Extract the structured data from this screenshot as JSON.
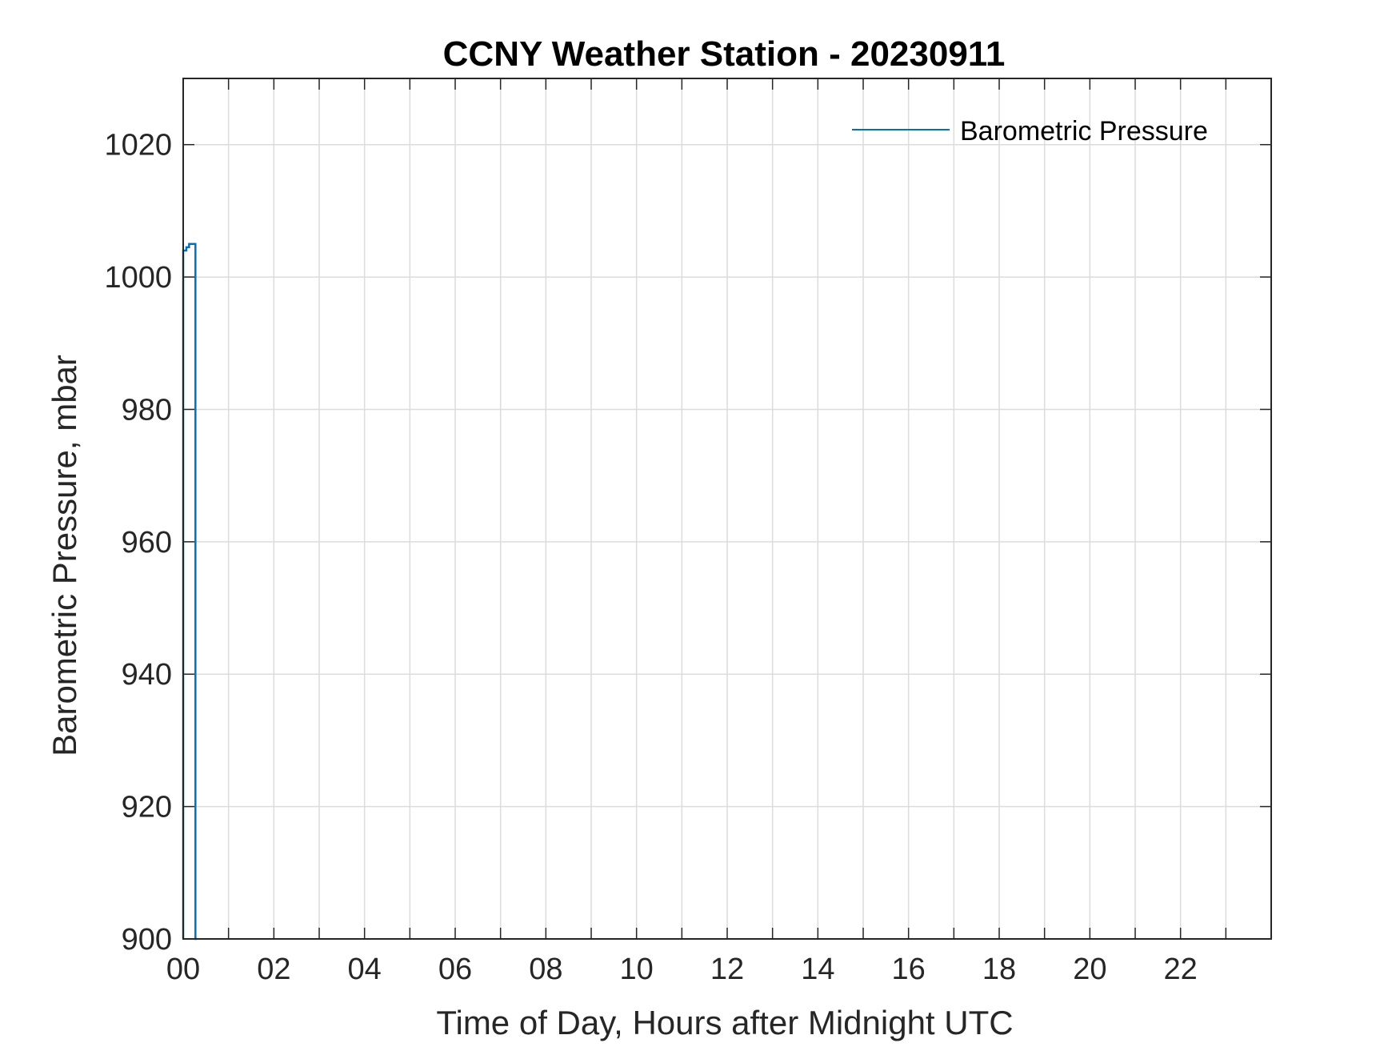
{
  "chart_data": {
    "type": "line",
    "title": "CCNY Weather Station - 20230911",
    "xlabel": "Time of Day, Hours after Midnight UTC",
    "ylabel": "Barometric Pressure, mbar",
    "xlim": [
      0,
      24
    ],
    "ylim": [
      900,
      1030
    ],
    "x_ticks": [
      0,
      2,
      4,
      6,
      8,
      10,
      12,
      14,
      16,
      18,
      20,
      22
    ],
    "x_tick_labels": [
      "00",
      "02",
      "04",
      "06",
      "08",
      "10",
      "12",
      "14",
      "16",
      "18",
      "20",
      "22"
    ],
    "x_minor_ticks": [
      1,
      3,
      5,
      7,
      9,
      11,
      13,
      15,
      17,
      19,
      21,
      23
    ],
    "y_ticks": [
      900,
      920,
      940,
      960,
      980,
      1000,
      1020
    ],
    "y_tick_labels": [
      "900",
      "920",
      "940",
      "960",
      "980",
      "1000",
      "1020"
    ],
    "grid": true,
    "legend_position": "top-right",
    "series": [
      {
        "name": "Barometric Pressure",
        "color": "#0072BD",
        "x": [
          0.0,
          0.0,
          0.07,
          0.07,
          0.13,
          0.13,
          0.17,
          0.2,
          0.27,
          0.27,
          0.3
        ],
        "y": [
          900,
          1004,
          1004,
          1004.5,
          1004.5,
          1005,
          1005,
          1005,
          1005,
          900,
          900
        ]
      }
    ]
  }
}
